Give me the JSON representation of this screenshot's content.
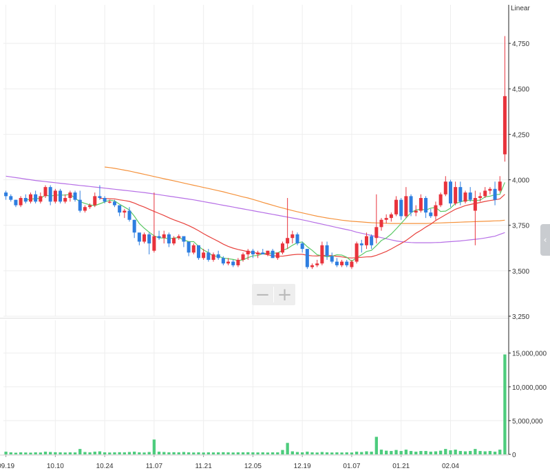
{
  "chart_data": {
    "type": "candlestick",
    "scale_label": "Linear",
    "y_ticks": [
      "4,750",
      "4,500",
      "4,250",
      "4,000",
      "3,750",
      "3,500",
      "3,250"
    ],
    "y_tick_values": [
      4750,
      4500,
      4250,
      4000,
      3750,
      3500,
      3250
    ],
    "volume_ticks": [
      "15,000,000",
      "10,000,000",
      "5,000,000",
      "0"
    ],
    "volume_tick_values": [
      15000000,
      10000000,
      5000000,
      0
    ],
    "x_labels": [
      "09.19",
      "10.10",
      "10.24",
      "11.07",
      "11.21",
      "12.05",
      "12.19",
      "01.07",
      "01.21",
      "02.04"
    ],
    "x_label_indices": [
      0,
      10,
      20,
      30,
      40,
      50,
      60,
      70,
      80,
      90
    ],
    "candles": [
      [
        3930,
        3940,
        3890,
        3910
      ],
      [
        3910,
        3920,
        3880,
        3890
      ],
      [
        3890,
        3890,
        3850,
        3860
      ],
      [
        3860,
        3910,
        3850,
        3900
      ],
      [
        3900,
        3920,
        3870,
        3880
      ],
      [
        3880,
        3930,
        3870,
        3920
      ],
      [
        3920,
        3940,
        3870,
        3880
      ],
      [
        3880,
        3930,
        3870,
        3910
      ],
      [
        3910,
        3970,
        3900,
        3960
      ],
      [
        3960,
        3970,
        3860,
        3880
      ],
      [
        3880,
        3950,
        3870,
        3940
      ],
      [
        3940,
        3950,
        3870,
        3880
      ],
      [
        3880,
        3920,
        3870,
        3900
      ],
      [
        3900,
        3940,
        3880,
        3930
      ],
      [
        3930,
        3940,
        3880,
        3890
      ],
      [
        3890,
        3940,
        3820,
        3830
      ],
      [
        3830,
        3860,
        3820,
        3850
      ],
      [
        3850,
        3870,
        3840,
        3860
      ],
      [
        3860,
        3930,
        3850,
        3910
      ],
      [
        3910,
        3970,
        3890,
        3900
      ],
      [
        3900,
        3910,
        3870,
        3880
      ],
      [
        3880,
        3890,
        3870,
        3880
      ],
      [
        3880,
        3890,
        3850,
        3860
      ],
      [
        3860,
        3860,
        3800,
        3820
      ],
      [
        3820,
        3840,
        3790,
        3830
      ],
      [
        3830,
        3850,
        3770,
        3780
      ],
      [
        3780,
        3780,
        3680,
        3710
      ],
      [
        3710,
        3700,
        3640,
        3660
      ],
      [
        3660,
        3710,
        3650,
        3700
      ],
      [
        3700,
        3710,
        3590,
        3650
      ],
      [
        3610,
        3930,
        3600,
        3690
      ],
      [
        3690,
        3720,
        3670,
        3680
      ],
      [
        3680,
        3720,
        3650,
        3700
      ],
      [
        3700,
        3710,
        3630,
        3650
      ],
      [
        3650,
        3690,
        3640,
        3680
      ],
      [
        3680,
        3700,
        3670,
        3690
      ],
      [
        3690,
        3680,
        3630,
        3660
      ],
      [
        3660,
        3660,
        3580,
        3600
      ],
      [
        3600,
        3650,
        3590,
        3640
      ],
      [
        3640,
        3640,
        3560,
        3570
      ],
      [
        3570,
        3620,
        3560,
        3600
      ],
      [
        3600,
        3620,
        3550,
        3560
      ],
      [
        3560,
        3600,
        3550,
        3590
      ],
      [
        3590,
        3610,
        3560,
        3570
      ],
      [
        3570,
        3580,
        3530,
        3540
      ],
      [
        3540,
        3570,
        3530,
        3550
      ],
      [
        3550,
        3560,
        3520,
        3530
      ],
      [
        3530,
        3570,
        3520,
        3560
      ],
      [
        3560,
        3600,
        3550,
        3590
      ],
      [
        3590,
        3620,
        3560,
        3610
      ],
      [
        3610,
        3620,
        3570,
        3590
      ],
      [
        3590,
        3610,
        3570,
        3600
      ],
      [
        3600,
        3620,
        3590,
        3590
      ],
      [
        3590,
        3610,
        3580,
        3610
      ],
      [
        3610,
        3620,
        3570,
        3570
      ],
      [
        3570,
        3600,
        3560,
        3600
      ],
      [
        3600,
        3660,
        3590,
        3650
      ],
      [
        3650,
        3900,
        3620,
        3680
      ],
      [
        3680,
        3720,
        3650,
        3700
      ],
      [
        3700,
        3710,
        3640,
        3650
      ],
      [
        3650,
        3660,
        3600,
        3620
      ],
      [
        3620,
        3620,
        3510,
        3520
      ],
      [
        3520,
        3540,
        3510,
        3530
      ],
      [
        3530,
        3560,
        3520,
        3540
      ],
      [
        3540,
        3660,
        3530,
        3640
      ],
      [
        3640,
        3660,
        3560,
        3580
      ],
      [
        3580,
        3600,
        3540,
        3550
      ],
      [
        3550,
        3570,
        3520,
        3530
      ],
      [
        3530,
        3560,
        3520,
        3550
      ],
      [
        3550,
        3560,
        3520,
        3530
      ],
      [
        3520,
        3560,
        3510,
        3550
      ],
      [
        3550,
        3660,
        3540,
        3650
      ],
      [
        3650,
        3670,
        3600,
        3640
      ],
      [
        3640,
        3710,
        3620,
        3690
      ],
      [
        3690,
        3700,
        3620,
        3640
      ],
      [
        3680,
        3920,
        3650,
        3740
      ],
      [
        3740,
        3790,
        3720,
        3780
      ],
      [
        3780,
        3810,
        3760,
        3790
      ],
      [
        3790,
        3820,
        3770,
        3810
      ],
      [
        3810,
        3910,
        3800,
        3890
      ],
      [
        3890,
        3900,
        3780,
        3800
      ],
      [
        3800,
        3960,
        3790,
        3910
      ],
      [
        3910,
        3920,
        3800,
        3820
      ],
      [
        3820,
        3860,
        3800,
        3830
      ],
      [
        3830,
        3920,
        3820,
        3900
      ],
      [
        3900,
        3910,
        3790,
        3820
      ],
      [
        3820,
        3840,
        3790,
        3800
      ],
      [
        3800,
        3880,
        3780,
        3860
      ],
      [
        3860,
        3930,
        3850,
        3920
      ],
      [
        3920,
        4020,
        3910,
        3990
      ],
      [
        3990,
        4000,
        3850,
        3870
      ],
      [
        3870,
        3990,
        3860,
        3960
      ],
      [
        3960,
        3990,
        3860,
        3880
      ],
      [
        3880,
        3940,
        3870,
        3930
      ],
      [
        3930,
        3960,
        3880,
        3890
      ],
      [
        3830,
        3940,
        3640,
        3900
      ],
      [
        3900,
        3930,
        3880,
        3910
      ],
      [
        3910,
        3960,
        3900,
        3940
      ],
      [
        3940,
        3960,
        3920,
        3950
      ],
      [
        3950,
        3990,
        3860,
        3890
      ],
      [
        3940,
        4020,
        3930,
        3990
      ],
      [
        4140,
        4790,
        4100,
        4460
      ]
    ],
    "volumes": [
      400000,
      300000,
      250000,
      300000,
      280000,
      260000,
      300000,
      280000,
      400000,
      350000,
      320000,
      300000,
      280000,
      300000,
      290000,
      800000,
      350000,
      300000,
      400000,
      450000,
      300000,
      280000,
      300000,
      320000,
      300000,
      350000,
      400000,
      300000,
      280000,
      350000,
      2200000,
      400000,
      350000,
      300000,
      320000,
      300000,
      350000,
      300000,
      280000,
      300000,
      280000,
      300000,
      290000,
      300000,
      320000,
      300000,
      280000,
      300000,
      300000,
      320000,
      300000,
      290000,
      300000,
      280000,
      300000,
      300000,
      650000,
      1700000,
      450000,
      350000,
      300000,
      400000,
      300000,
      280000,
      350000,
      300000,
      280000,
      300000,
      280000,
      300000,
      280000,
      400000,
      350000,
      450000,
      400000,
      2600000,
      700000,
      550000,
      500000,
      650000,
      500000,
      700000,
      500000,
      400000,
      500000,
      500000,
      400000,
      450000,
      550000,
      800000,
      600000,
      700000,
      500000,
      450000,
      500000,
      800000,
      500000,
      450000,
      500000,
      400000,
      700000,
      14800000
    ],
    "ma5": [
      null,
      null,
      null,
      null,
      3888,
      3894,
      3896,
      3898,
      3916,
      3910,
      3916,
      3916,
      3916,
      3920,
      3898,
      3880,
      3870,
      3862,
      3858,
      3868,
      3878,
      3888,
      3884,
      3866,
      3850,
      3834,
      3800,
      3760,
      3734,
      3712,
      3692,
      3680,
      3680,
      3676,
      3680,
      3682,
      3670,
      3660,
      3660,
      3634,
      3614,
      3600,
      3580,
      3580,
      3570,
      3566,
      3562,
      3556,
      3560,
      3572,
      3582,
      3584,
      3594,
      3596,
      3596,
      3598,
      3612,
      3622,
      3640,
      3654,
      3658,
      3632,
      3612,
      3588,
      3582,
      3576,
      3580,
      3588,
      3586,
      3574,
      3552,
      3572,
      3588,
      3606,
      3612,
      3638,
      3666,
      3680,
      3702,
      3730,
      3760,
      3790,
      3820,
      3834,
      3838,
      3834,
      3844,
      3848,
      3826,
      3828,
      3844,
      3870,
      3878,
      3888,
      3886,
      3886,
      3888,
      3906,
      3910,
      3918,
      3920,
      3986
    ],
    "ma20": [
      null,
      null,
      null,
      null,
      null,
      null,
      null,
      null,
      null,
      null,
      null,
      null,
      null,
      null,
      null,
      null,
      null,
      null,
      null,
      3898,
      3897,
      3896,
      3895,
      3890,
      3886,
      3881,
      3872,
      3860,
      3850,
      3838,
      3826,
      3815,
      3804,
      3791,
      3780,
      3770,
      3760,
      3748,
      3735,
      3720,
      3704,
      3689,
      3675,
      3661,
      3646,
      3634,
      3624,
      3617,
      3611,
      3605,
      3600,
      3597,
      3593,
      3588,
      3583,
      3580,
      3580,
      3584,
      3588,
      3590,
      3590,
      3585,
      3582,
      3581,
      3584,
      3584,
      3583,
      3579,
      3576,
      3572,
      3570,
      3572,
      3574,
      3576,
      3577,
      3585,
      3595,
      3606,
      3620,
      3635,
      3650,
      3666,
      3686,
      3706,
      3722,
      3740,
      3756,
      3776,
      3792,
      3808,
      3823,
      3838,
      3848,
      3858,
      3864,
      3870,
      3875,
      3881,
      3886,
      3890,
      3895,
      3920
    ],
    "ma60": [
      null,
      null,
      null,
      null,
      null,
      null,
      null,
      null,
      null,
      null,
      null,
      null,
      null,
      null,
      null,
      null,
      null,
      null,
      null,
      null,
      4070,
      4067,
      4063,
      4058,
      4053,
      4048,
      4042,
      4036,
      4030,
      4024,
      4018,
      4012,
      4006,
      4000,
      3994,
      3988,
      3982,
      3976,
      3970,
      3964,
      3958,
      3952,
      3946,
      3940,
      3934,
      3927,
      3920,
      3913,
      3906,
      3900,
      3892,
      3884,
      3876,
      3868,
      3860,
      3852,
      3845,
      3838,
      3831,
      3824,
      3818,
      3812,
      3806,
      3800,
      3795,
      3790,
      3786,
      3782,
      3778,
      3775,
      3772,
      3770,
      3768,
      3766,
      3764,
      3763,
      3762,
      3761,
      3760,
      3760,
      3760,
      3760,
      3760,
      3760,
      3760,
      3760,
      3761,
      3762,
      3763,
      3764,
      3765,
      3766,
      3767,
      3768,
      3769,
      3770,
      3771,
      3772,
      3773,
      3774,
      3775,
      3778
    ],
    "ma120": [
      4020,
      4016,
      4012,
      4008,
      4004,
      4000,
      3996,
      3993,
      3990,
      3987,
      3984,
      3981,
      3978,
      3975,
      3972,
      3969,
      3966,
      3963,
      3960,
      3957,
      3954,
      3951,
      3948,
      3945,
      3942,
      3939,
      3936,
      3933,
      3930,
      3926,
      3922,
      3918,
      3914,
      3910,
      3906,
      3902,
      3898,
      3894,
      3890,
      3885,
      3880,
      3875,
      3870,
      3865,
      3860,
      3855,
      3850,
      3845,
      3840,
      3835,
      3830,
      3825,
      3820,
      3815,
      3810,
      3805,
      3800,
      3795,
      3790,
      3785,
      3780,
      3774,
      3768,
      3762,
      3756,
      3750,
      3744,
      3738,
      3732,
      3726,
      3720,
      3712,
      3706,
      3700,
      3694,
      3688,
      3682,
      3676,
      3670,
      3664,
      3660,
      3657,
      3655,
      3654,
      3654,
      3654,
      3654,
      3655,
      3656,
      3658,
      3660,
      3662,
      3664,
      3667,
      3670,
      3673,
      3676,
      3680,
      3685,
      3690,
      3700,
      3710
    ],
    "colors": {
      "up": "#e8333c",
      "down": "#2e7ee0",
      "volume": "#4dcc7d",
      "ma5": "#5ac864",
      "ma20": "#e8413c",
      "ma60": "#f5913a",
      "ma120": "#b66ee6",
      "grid": "#eeeeee",
      "axis": "#222222"
    }
  },
  "controls": {
    "zoom_out_icon": "minus-icon",
    "zoom_in_icon": "plus-icon",
    "side_tab_icon": "chevron-left-icon",
    "zoom_out_glyph": "−",
    "zoom_in_glyph": "+",
    "side_tab_glyph": "‹"
  }
}
